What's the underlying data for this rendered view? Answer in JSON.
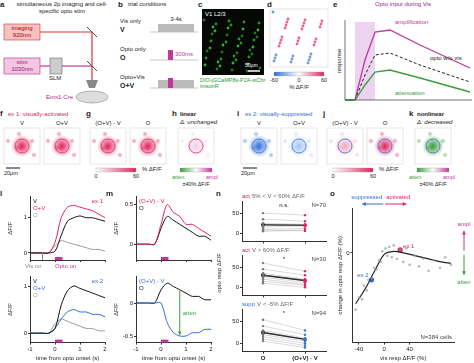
{
  "panels": {
    "a": {
      "letter": "a",
      "title": "simultaneous 2p imaging and cell-specific opto stim",
      "imaging": "imaging",
      "imaging_wavelength": "920nm",
      "stim": "stim",
      "stim_wavelength": "1030nm",
      "slm": "SLM",
      "mouse": "Emx1-Cre"
    },
    "b": {
      "letter": "b",
      "title": "trial conditions",
      "rows": [
        {
          "name": "Vis only",
          "short": "V"
        },
        {
          "name": "Opto only",
          "short": "O"
        },
        {
          "name": "Opto+Vis",
          "short": "O+V"
        }
      ],
      "vis_duration": "3-4s",
      "opto_duration": "300ms"
    },
    "c": {
      "letter": "c",
      "region": "V1 L2/3",
      "construct": "DIO-jGCaMP8s-P2A-stChrimsonR",
      "scale_bar": "50µm"
    },
    "d": {
      "letter": "d",
      "colorbar": {
        "label": "% ΔF/F",
        "range": [
          -60,
          60
        ],
        "ticks": [
          -60,
          0,
          60
        ]
      }
    },
    "e": {
      "letter": "e",
      "title": "Opto input during Vis",
      "ylabel": "response",
      "curves": [
        "amplification",
        "opto w/o vis",
        "attenuation"
      ]
    },
    "f": {
      "letter": "f",
      "title": "ex 1: visually-activated",
      "images": [
        "V",
        "O+V"
      ],
      "scale_bar": "20µm"
    },
    "g": {
      "letter": "g",
      "images": [
        "(O+V) - V",
        "O"
      ],
      "colorbar": {
        "label": "% ΔF/F",
        "range": [
          0,
          60
        ],
        "ticks": [
          0,
          60
        ]
      }
    },
    "h": {
      "letter": "h",
      "title": "linear",
      "subtitle": "Δ: unchanged",
      "colorbar": {
        "low": "atten",
        "high": "ampl",
        "label": "±40% ΔF/F"
      }
    },
    "i": {
      "letter": "i",
      "title": "ex 2: visually-suppressed",
      "images": [
        "V",
        "O+V"
      ],
      "scale_bar": "20µm"
    },
    "j": {
      "letter": "j",
      "images": [
        "(O+V) - V",
        "O"
      ],
      "colorbar": {
        "label": "% ΔF/F",
        "range": [
          0,
          60
        ],
        "ticks": [
          0,
          60
        ]
      }
    },
    "k": {
      "letter": "k",
      "title": "nonlinear",
      "subtitle": "Δ: decreased",
      "colorbar": {
        "low": "atten",
        "high": "ampl",
        "label": "±40% ΔF/F"
      }
    }
  },
  "chart_data": [
    {
      "panel": "l",
      "type": "line",
      "title": "ex 1",
      "color": "#e0245e",
      "legend": "upper left",
      "grid": false,
      "tick_labels": "y",
      "ylabel": "ΔF/F",
      "x": [
        -1,
        -0.75,
        -0.5,
        -0.25,
        0,
        0.25,
        0.5,
        0.75,
        1,
        1.25,
        1.5,
        1.75,
        2
      ],
      "series": [
        {
          "name": "V",
          "color": "#111111",
          "values": [
            0,
            0,
            0,
            0,
            0.05,
            0.5,
            0.9,
            1.0,
            1.05,
            1.0,
            1.0,
            0.95,
            0.9
          ]
        },
        {
          "name": "O+V",
          "color": "#e0245e",
          "values": [
            0,
            0,
            0,
            0,
            0.3,
            1.0,
            1.3,
            1.35,
            1.3,
            1.25,
            1.2,
            1.1,
            1.0
          ]
        },
        {
          "name": "O",
          "color": "#9a9a9a",
          "values": [
            0,
            0,
            0,
            0,
            0.2,
            0.35,
            0.3,
            0.25,
            0.2,
            0.15,
            0.1,
            0.1,
            0.05
          ]
        }
      ],
      "markers": [
        {
          "label": "Vis on",
          "x": -0.5,
          "color": "#888888"
        },
        {
          "label": "Opto on",
          "x": 0,
          "end": 0.3,
          "color": "#c2379d"
        }
      ],
      "xlim": [
        -1,
        2
      ],
      "xticks": [
        -1,
        0,
        1,
        2
      ],
      "ylim": [
        -0.2,
        1.6
      ],
      "yticks": [
        0,
        1
      ]
    },
    {
      "type": "line",
      "title": "ex 2",
      "color": "#2f6fd6",
      "legend": "upper left",
      "grid": false,
      "ylabel": "ΔF/F",
      "xlabel": "time from opto onset (s)",
      "x": [
        -1,
        -0.75,
        -0.5,
        -0.25,
        0,
        0.25,
        0.5,
        0.75,
        1,
        1.25,
        1.5,
        1.75,
        2
      ],
      "series": [
        {
          "name": "V",
          "color": "#111111",
          "values": [
            0,
            0,
            0,
            0,
            0.1,
            0.6,
            0.9,
            1.0,
            0.95,
            0.9,
            0.85,
            0.8,
            0.75
          ]
        },
        {
          "name": "O+V",
          "color": "#2f6fd6",
          "values": [
            0,
            0,
            0,
            0,
            0.1,
            0.3,
            0.45,
            0.5,
            0.45,
            0.45,
            0.4,
            0.4,
            0.35
          ]
        },
        {
          "name": "O",
          "color": "#9a9a9a",
          "values": [
            0,
            0,
            0,
            0,
            0.2,
            0.3,
            0.25,
            0.2,
            0.15,
            0.1,
            0.1,
            0.05,
            0.05
          ]
        }
      ],
      "markers": [
        {
          "x": 0,
          "end": 0.3,
          "color": "#c2379d"
        }
      ],
      "xlim": [
        -1,
        2
      ],
      "xticks": [
        -1,
        0,
        1,
        2
      ],
      "ylim": [
        -0.2,
        1.2
      ],
      "yticks": [
        0,
        1
      ]
    },
    {
      "panel": "m",
      "type": "line",
      "legend": "upper left",
      "grid": false,
      "tick_labels": "y",
      "ylabel": "ΔF/F",
      "x": [
        -1,
        -0.75,
        -0.5,
        -0.25,
        0,
        0.25,
        0.5,
        0.75,
        1,
        1.25,
        1.5,
        1.75,
        2
      ],
      "series": [
        {
          "name": "(O+V) - V",
          "color": "#e0245e",
          "values": [
            0,
            0,
            0,
            0,
            0.25,
            0.5,
            0.4,
            0.35,
            0.25,
            0.25,
            0.2,
            0.15,
            0.1
          ]
        },
        {
          "name": "O",
          "color": "#111111",
          "values": [
            0,
            0,
            0,
            0,
            0.2,
            0.35,
            0.3,
            0.25,
            0.2,
            0.15,
            0.1,
            0.1,
            0.05
          ]
        }
      ],
      "markers": [
        {
          "x": 0,
          "end": 0.3,
          "color": "#c2379d"
        }
      ],
      "xlim": [
        -1,
        2
      ],
      "xticks": [
        -1,
        0,
        1,
        2
      ],
      "ylim": [
        -0.2,
        0.6
      ],
      "yticks": [
        0,
        0.5
      ]
    },
    {
      "type": "line",
      "legend": "upper left",
      "grid": false,
      "ylabel": "ΔF/F",
      "xlabel": "time from opto onset (s)",
      "x": [
        -1,
        -0.75,
        -0.5,
        -0.25,
        0,
        0.25,
        0.5,
        0.75,
        1,
        1.25,
        1.5,
        1.75,
        2
      ],
      "series": [
        {
          "name": "(O+V) - V",
          "color": "#2f6fd6",
          "values": [
            0,
            0,
            0,
            0,
            0,
            -0.3,
            -0.45,
            -0.5,
            -0.5,
            -0.45,
            -0.45,
            -0.4,
            -0.4
          ]
        },
        {
          "name": "O",
          "color": "#111111",
          "values": [
            0,
            0,
            0,
            0,
            0.2,
            0.3,
            0.25,
            0.2,
            0.15,
            0.1,
            0.1,
            0.05,
            0.05
          ]
        }
      ],
      "markers": [
        {
          "x": 0,
          "end": 0.3,
          "color": "#c2379d"
        }
      ],
      "arrow": {
        "label": "atten",
        "x": 0.75,
        "from": "O",
        "to": "(O+V) - V",
        "color": "#3a9d3a"
      },
      "xlim": [
        -1,
        2
      ],
      "xticks": [
        -1,
        0,
        1,
        2
      ],
      "ylim": [
        -0.6,
        0.4
      ],
      "yticks": [
        -0.5,
        0
      ]
    },
    {
      "panel": "n",
      "type": "line",
      "grid": false,
      "tick_labels": "y",
      "color": "#e0245e",
      "group": "act",
      "condition": "5% < V < 60% ΔF/F",
      "count": "N=70",
      "significance": "n.s.",
      "categories": [
        "O",
        "(O+V) - V"
      ],
      "values": [
        [
          10,
          12
        ],
        [
          20,
          18
        ],
        [
          35,
          30
        ],
        [
          5,
          8
        ],
        [
          50,
          45
        ],
        [
          15,
          20
        ],
        [
          25,
          22
        ],
        [
          8,
          6
        ]
      ],
      "mean": [
        21,
        20
      ],
      "ylim": [
        -20,
        80
      ],
      "yticks": [
        0,
        50
      ]
    },
    {
      "type": "line",
      "grid": false,
      "tick_labels": "y",
      "color": "#e0245e",
      "ylabel": "opto resp ΔF/F",
      "group": "act",
      "condition": "V > 60% ΔF/F",
      "count": "N=30",
      "significance": "*",
      "categories": [
        "O",
        "(O+V) - V"
      ],
      "values": [
        [
          15,
          5
        ],
        [
          30,
          18
        ],
        [
          45,
          30
        ],
        [
          20,
          8
        ],
        [
          60,
          40
        ],
        [
          10,
          0
        ],
        [
          35,
          20
        ],
        [
          25,
          12
        ]
      ],
      "mean": [
        30,
        17
      ],
      "ylim": [
        -20,
        80
      ],
      "yticks": [
        0,
        50
      ]
    },
    {
      "type": "line",
      "grid": false,
      "color": "#2f6fd6",
      "group": "supp",
      "condition": "V < -5% ΔF/F",
      "count": "N=94",
      "significance": "*",
      "categories": [
        "O",
        "(O+V) - V"
      ],
      "values": [
        [
          10,
          -5
        ],
        [
          25,
          10
        ],
        [
          40,
          20
        ],
        [
          15,
          0
        ],
        [
          55,
          30
        ],
        [
          5,
          -10
        ],
        [
          30,
          12
        ],
        [
          20,
          5
        ]
      ],
      "mean": [
        25,
        9
      ],
      "ylim": [
        -20,
        80
      ],
      "yticks": [
        0,
        50
      ]
    },
    {
      "panel": "o",
      "type": "scatter",
      "grid": false,
      "xlabel": "vis resp ΔF/F (%)",
      "ylabel": "change in opto resp ΔF/F (%)",
      "series": [
        {
          "color": "#9a9a9a",
          "marker": "circle",
          "x": [
            -45,
            -40,
            -35,
            -32,
            -28,
            -25,
            -20,
            -16,
            -12,
            -8,
            -5,
            -3,
            2,
            5,
            8,
            12,
            15,
            20,
            25,
            30,
            35,
            40,
            48,
            55,
            62,
            70,
            78,
            88,
            96,
            105
          ],
          "values": [
            -38,
            -30,
            -31,
            -22,
            -25,
            -18,
            -17,
            -10,
            -11,
            -5,
            -6,
            1,
            3,
            -2,
            4,
            -3,
            5,
            -4,
            2,
            -6,
            3,
            -8,
            -2,
            -9,
            -4,
            -12,
            -5,
            -10,
            -3,
            -8
          ]
        },
        {
          "type": "line",
          "color": "#222222",
          "x": [
            -45,
            -30,
            -15,
            0,
            15,
            30,
            50,
            70,
            90,
            105
          ],
          "values": [
            -34,
            -24,
            -12,
            -1,
            1,
            0,
            -2,
            -4,
            -6,
            -7
          ]
        }
      ],
      "examples": [
        {
          "label": "ex 1",
          "x": 25,
          "y": 2,
          "color": "#e0245e"
        },
        {
          "label": "ex 2",
          "x": -20,
          "y": -18,
          "color": "#2f6fd6"
        }
      ],
      "annotations": {
        "left": "suppressed",
        "right": "activated",
        "up": "ampl",
        "down": "atten",
        "count": "N=384 cells"
      },
      "xlim": [
        -50,
        110
      ],
      "xticks": [
        -40,
        0,
        40
      ],
      "ylim": [
        -60,
        30
      ],
      "yticks": [
        0
      ]
    }
  ]
}
